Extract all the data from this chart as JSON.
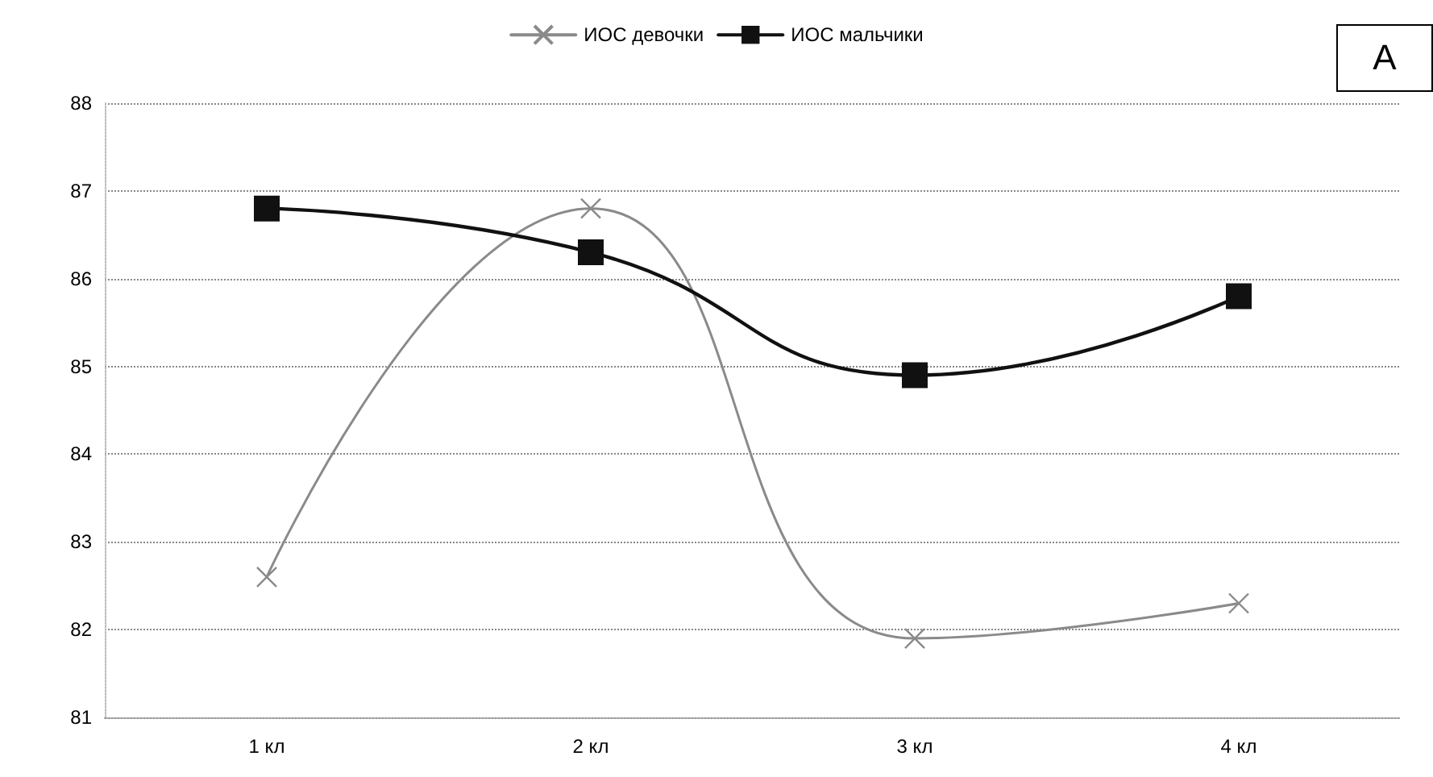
{
  "chart_data": {
    "type": "line",
    "categories": [
      "1 кл",
      "2 кл",
      "3 кл",
      "4 кл"
    ],
    "series": [
      {
        "name": "ИОС девочки",
        "color": "#8a8a8a",
        "marker": "cross",
        "values": [
          82.6,
          86.8,
          81.9,
          82.3
        ]
      },
      {
        "name": "ИОС мальчики",
        "color": "#111111",
        "marker": "square",
        "values": [
          86.8,
          86.3,
          84.9,
          85.8
        ]
      }
    ],
    "ylim": [
      81,
      88
    ],
    "yticks": [
      81,
      82,
      83,
      84,
      85,
      86,
      87,
      88
    ],
    "grid": "y",
    "legend": "top",
    "line_style": "solid",
    "annotations": [
      "A"
    ]
  }
}
